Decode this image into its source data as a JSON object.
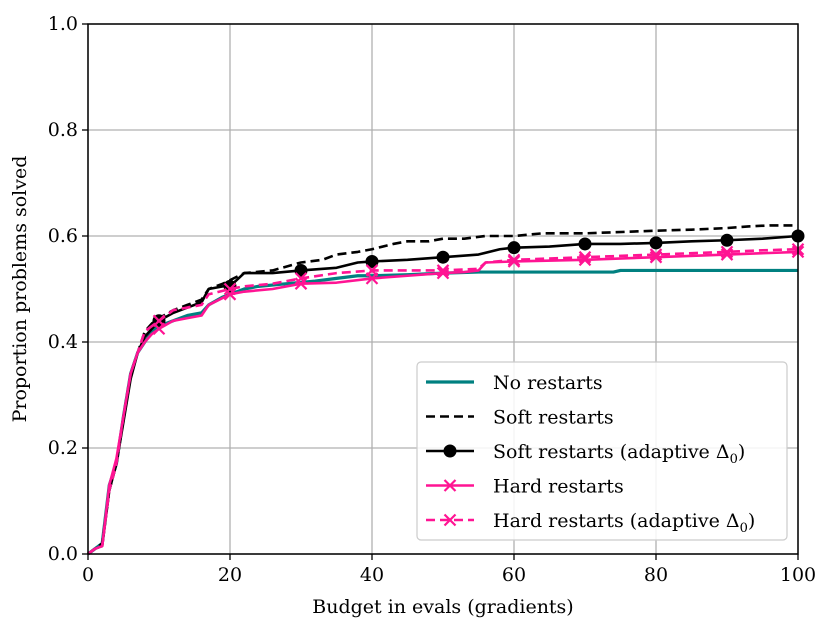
{
  "chart_data": {
    "type": "line",
    "title": "",
    "xlabel": "Budget in evals (gradients)",
    "ylabel": "Proportion problems solved",
    "xlim": [
      0,
      100
    ],
    "ylim": [
      0.0,
      1.0
    ],
    "grid": true,
    "legend_position": "bottom-right",
    "x_ticks": [
      0,
      20,
      40,
      60,
      80,
      100
    ],
    "x_tick_labels": [
      "0",
      "20",
      "40",
      "60",
      "80",
      "100"
    ],
    "y_ticks": [
      0.0,
      0.2,
      0.4,
      0.6,
      0.8,
      1.0
    ],
    "y_tick_labels": [
      "0.0",
      "0.2",
      "0.4",
      "0.6",
      "0.8",
      "1.0"
    ],
    "series": [
      {
        "name": "No restarts",
        "legend_prefix": "No restarts",
        "legend_math": "",
        "color": "#008080",
        "line_style": "solid",
        "marker": "none",
        "marker_every": [],
        "points": [
          [
            0,
            0.0
          ],
          [
            1,
            0.01
          ],
          [
            2,
            0.02
          ],
          [
            3,
            0.13
          ],
          [
            4,
            0.17
          ],
          [
            5,
            0.26
          ],
          [
            6,
            0.34
          ],
          [
            7,
            0.38
          ],
          [
            8,
            0.4
          ],
          [
            9,
            0.42
          ],
          [
            10,
            0.43
          ],
          [
            12,
            0.44
          ],
          [
            14,
            0.45
          ],
          [
            16,
            0.455
          ],
          [
            17,
            0.47
          ],
          [
            19,
            0.485
          ],
          [
            22,
            0.5
          ],
          [
            24,
            0.505
          ],
          [
            28,
            0.51
          ],
          [
            32,
            0.515
          ],
          [
            35,
            0.52
          ],
          [
            38,
            0.525
          ],
          [
            40,
            0.525
          ],
          [
            45,
            0.527
          ],
          [
            50,
            0.53
          ],
          [
            55,
            0.532
          ],
          [
            60,
            0.532
          ],
          [
            74,
            0.532
          ],
          [
            75,
            0.535
          ],
          [
            100,
            0.535
          ]
        ]
      },
      {
        "name": "Soft restarts",
        "legend_prefix": "Soft restarts",
        "legend_math": "",
        "color": "#000000",
        "line_style": "dashed",
        "marker": "none",
        "marker_every": [],
        "points": [
          [
            0,
            0.0
          ],
          [
            1,
            0.01
          ],
          [
            2,
            0.02
          ],
          [
            3,
            0.12
          ],
          [
            4,
            0.17
          ],
          [
            5,
            0.26
          ],
          [
            6,
            0.34
          ],
          [
            7,
            0.38
          ],
          [
            8,
            0.42
          ],
          [
            9,
            0.435
          ],
          [
            10,
            0.445
          ],
          [
            12,
            0.46
          ],
          [
            14,
            0.47
          ],
          [
            16,
            0.48
          ],
          [
            17,
            0.5
          ],
          [
            19,
            0.51
          ],
          [
            22,
            0.53
          ],
          [
            26,
            0.535
          ],
          [
            30,
            0.55
          ],
          [
            33,
            0.555
          ],
          [
            35,
            0.565
          ],
          [
            38,
            0.57
          ],
          [
            40,
            0.575
          ],
          [
            43,
            0.585
          ],
          [
            45,
            0.59
          ],
          [
            48,
            0.59
          ],
          [
            50,
            0.595
          ],
          [
            53,
            0.595
          ],
          [
            56,
            0.6
          ],
          [
            60,
            0.6
          ],
          [
            64,
            0.605
          ],
          [
            70,
            0.605
          ],
          [
            80,
            0.61
          ],
          [
            85,
            0.612
          ],
          [
            90,
            0.615
          ],
          [
            93,
            0.618
          ],
          [
            96,
            0.62
          ],
          [
            100,
            0.62
          ]
        ]
      },
      {
        "name": "Soft restarts (adaptive Δ₀)",
        "legend_prefix": "Soft restarts (adaptive ",
        "legend_math": "Δ",
        "legend_sub": "0",
        "legend_suffix": ")",
        "color": "#000000",
        "line_style": "solid",
        "marker": "circle",
        "marker_every": [
          10,
          20,
          30,
          40,
          50,
          60,
          70,
          80,
          90,
          100
        ],
        "points": [
          [
            0,
            0.0
          ],
          [
            1,
            0.01
          ],
          [
            2,
            0.015
          ],
          [
            3,
            0.12
          ],
          [
            4,
            0.17
          ],
          [
            5,
            0.25
          ],
          [
            6,
            0.33
          ],
          [
            7,
            0.38
          ],
          [
            8,
            0.41
          ],
          [
            9,
            0.425
          ],
          [
            10,
            0.44
          ],
          [
            12,
            0.455
          ],
          [
            14,
            0.465
          ],
          [
            16,
            0.475
          ],
          [
            17,
            0.5
          ],
          [
            19,
            0.505
          ],
          [
            20,
            0.505
          ],
          [
            22,
            0.53
          ],
          [
            26,
            0.53
          ],
          [
            30,
            0.535
          ],
          [
            35,
            0.54
          ],
          [
            38,
            0.55
          ],
          [
            40,
            0.552
          ],
          [
            45,
            0.555
          ],
          [
            50,
            0.56
          ],
          [
            55,
            0.565
          ],
          [
            58,
            0.575
          ],
          [
            60,
            0.578
          ],
          [
            65,
            0.58
          ],
          [
            70,
            0.585
          ],
          [
            75,
            0.585
          ],
          [
            80,
            0.587
          ],
          [
            85,
            0.59
          ],
          [
            90,
            0.592
          ],
          [
            95,
            0.595
          ],
          [
            100,
            0.6
          ]
        ]
      },
      {
        "name": "Hard restarts",
        "legend_prefix": "Hard restarts",
        "legend_math": "",
        "color": "#ff1493",
        "line_style": "solid",
        "marker": "x",
        "marker_every": [
          10,
          20,
          30,
          40,
          50,
          60,
          70,
          80,
          90,
          100
        ],
        "points": [
          [
            0,
            0.0
          ],
          [
            1,
            0.01
          ],
          [
            2,
            0.015
          ],
          [
            3,
            0.13
          ],
          [
            4,
            0.18
          ],
          [
            5,
            0.26
          ],
          [
            6,
            0.34
          ],
          [
            7,
            0.38
          ],
          [
            8,
            0.4
          ],
          [
            9,
            0.415
          ],
          [
            10,
            0.425
          ],
          [
            12,
            0.44
          ],
          [
            14,
            0.445
          ],
          [
            16,
            0.45
          ],
          [
            17,
            0.47
          ],
          [
            20,
            0.49
          ],
          [
            22,
            0.495
          ],
          [
            26,
            0.5
          ],
          [
            30,
            0.51
          ],
          [
            35,
            0.512
          ],
          [
            40,
            0.52
          ],
          [
            45,
            0.525
          ],
          [
            50,
            0.53
          ],
          [
            53,
            0.532
          ],
          [
            55,
            0.535
          ],
          [
            56,
            0.55
          ],
          [
            60,
            0.552
          ],
          [
            70,
            0.555
          ],
          [
            80,
            0.56
          ],
          [
            90,
            0.565
          ],
          [
            100,
            0.57
          ]
        ]
      },
      {
        "name": "Hard restarts (adaptive Δ₀)",
        "legend_prefix": "Hard restarts (adaptive ",
        "legend_math": "Δ",
        "legend_sub": "0",
        "legend_suffix": ")",
        "color": "#ff1493",
        "line_style": "dashed",
        "marker": "x",
        "marker_every": [
          10,
          20,
          30,
          40,
          50,
          60,
          70,
          80,
          90,
          100
        ],
        "points": [
          [
            0,
            0.0
          ],
          [
            1,
            0.01
          ],
          [
            2,
            0.015
          ],
          [
            3,
            0.12
          ],
          [
            4,
            0.17
          ],
          [
            5,
            0.26
          ],
          [
            6,
            0.34
          ],
          [
            7,
            0.38
          ],
          [
            8,
            0.42
          ],
          [
            9,
            0.43
          ],
          [
            10,
            0.44
          ],
          [
            12,
            0.46
          ],
          [
            14,
            0.465
          ],
          [
            16,
            0.47
          ],
          [
            17,
            0.49
          ],
          [
            20,
            0.5
          ],
          [
            22,
            0.505
          ],
          [
            26,
            0.51
          ],
          [
            30,
            0.52
          ],
          [
            35,
            0.53
          ],
          [
            40,
            0.535
          ],
          [
            45,
            0.535
          ],
          [
            50,
            0.535
          ],
          [
            55,
            0.538
          ],
          [
            56,
            0.55
          ],
          [
            60,
            0.555
          ],
          [
            70,
            0.56
          ],
          [
            80,
            0.565
          ],
          [
            90,
            0.57
          ],
          [
            95,
            0.573
          ],
          [
            100,
            0.575
          ]
        ]
      }
    ]
  }
}
